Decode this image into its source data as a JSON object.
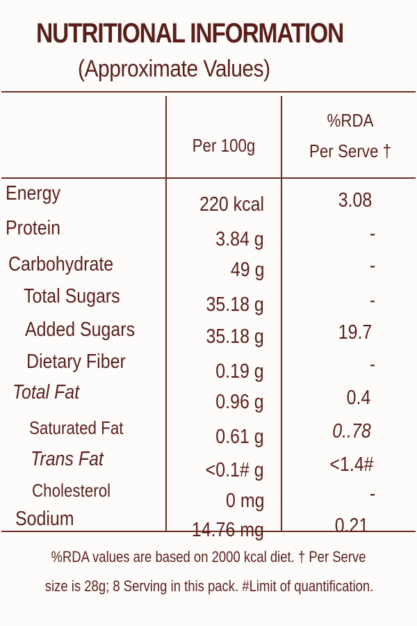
{
  "header": {
    "title": "NUTRITIONAL INFORMATION",
    "subtitle": "(Approximate Values)"
  },
  "columns": {
    "per100": "Per 100g",
    "rda_line1": "%RDA",
    "rda_line2": "Per Serve †"
  },
  "rows": [
    {
      "name": "Energy",
      "per100": "220 kcal",
      "rda": "3.08"
    },
    {
      "name": "Protein",
      "per100": "3.84 g",
      "rda": "-"
    },
    {
      "name": "Carbohydrate",
      "per100": "49 g",
      "rda": "-"
    },
    {
      "name": "Total Sugars",
      "per100": "35.18 g",
      "rda": "-"
    },
    {
      "name": "Added Sugars",
      "per100": "35.18 g",
      "rda": "19.7"
    },
    {
      "name": "Dietary Fiber",
      "per100": "0.19 g",
      "rda": "-"
    },
    {
      "name": "Total Fat",
      "per100": "0.96 g",
      "rda": "0.4"
    },
    {
      "name": "Saturated Fat",
      "per100": "0.61 g",
      "rda": "0..78"
    },
    {
      "name": "Trans Fat",
      "per100": "<0.1# g",
      "rda": "<1.4#"
    },
    {
      "name": "Cholesterol",
      "per100": "0 mg",
      "rda": "-"
    },
    {
      "name": "Sodium",
      "per100": "14.76 mg",
      "rda": "0.21"
    }
  ],
  "footnote": {
    "line1": "%RDA values are based on 2000 kcal diet. † Per Serve",
    "line2": "size is 28g; 8 Serving in this pack. #Limit of quantification."
  },
  "colors": {
    "text": "#5a1f1a",
    "rule": "#6b2a24",
    "background": "#fdfcfa"
  }
}
